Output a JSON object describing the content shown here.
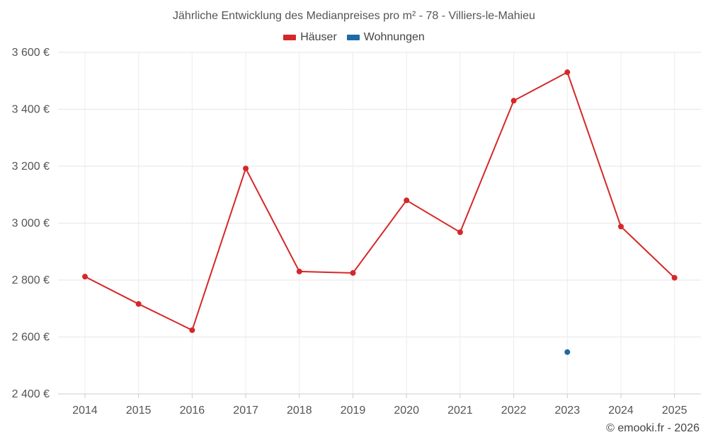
{
  "chart_data": {
    "type": "line",
    "title": "Jährliche Entwicklung des Medianpreises pro m² - 78 - Villiers-le-Mahieu",
    "categories": [
      "2014",
      "2015",
      "2016",
      "2017",
      "2018",
      "2019",
      "2020",
      "2021",
      "2022",
      "2023",
      "2024",
      "2025"
    ],
    "series": [
      {
        "name": "Häuser",
        "color": "#d62728",
        "values": [
          2812,
          2716,
          2624,
          3192,
          2830,
          2825,
          3080,
          2968,
          3430,
          3530,
          2988,
          2808
        ]
      },
      {
        "name": "Wohnungen",
        "color": "#1f6aa5",
        "values": [
          null,
          null,
          null,
          null,
          null,
          null,
          null,
          null,
          null,
          2547,
          null,
          null
        ]
      }
    ],
    "ylim": [
      2400,
      3600
    ],
    "yticks": [
      2400,
      2600,
      2800,
      3000,
      3200,
      3400,
      3600
    ],
    "ytick_labels": [
      "2 400 €",
      "2 600 €",
      "2 800 €",
      "3 000 €",
      "3 200 €",
      "3 400 €",
      "3 600 €"
    ],
    "xlabel": "",
    "ylabel": "",
    "grid": true,
    "legend_position": "top-center"
  },
  "copyright": "© emooki.fr - 2026"
}
